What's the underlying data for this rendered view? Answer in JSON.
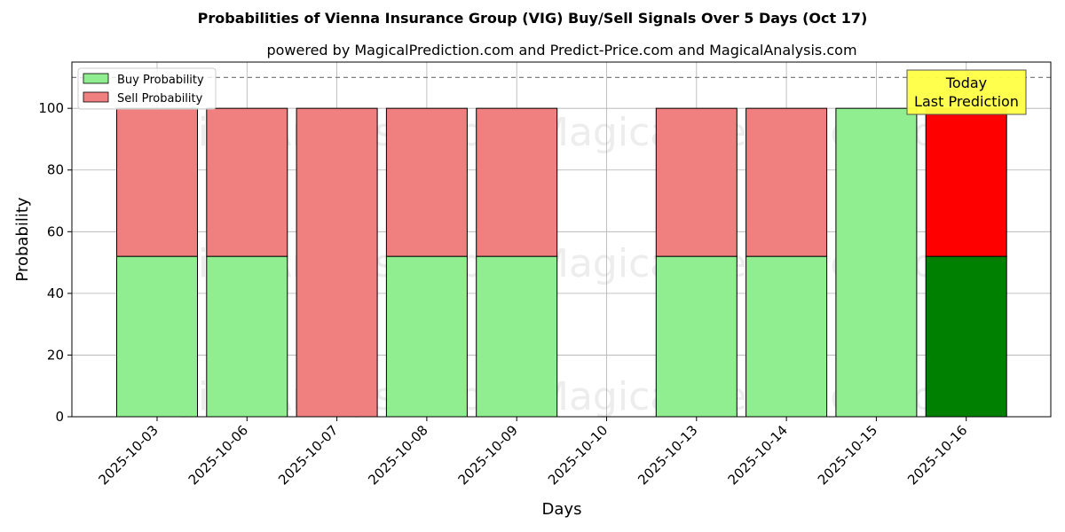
{
  "chart_data": {
    "type": "bar",
    "title": "Probabilities of Vienna Insurance Group (VIG) Buy/Sell Signals Over 5 Days (Oct 17)",
    "subtitle": "powered by MagicalPrediction.com and Predict-Price.com and MagicalAnalysis.com",
    "xlabel": "Days",
    "ylabel": "Probability",
    "ylim": [
      0,
      115
    ],
    "yticks": [
      0,
      20,
      40,
      60,
      80,
      100
    ],
    "grid": true,
    "stacked": true,
    "legend_position": "top-left",
    "categories": [
      "2025-10-03",
      "2025-10-06",
      "2025-10-07",
      "2025-10-08",
      "2025-10-09",
      "2025-10-10",
      "2025-10-13",
      "2025-10-14",
      "2025-10-15",
      "2025-10-16"
    ],
    "series": [
      {
        "name": "Buy Probability",
        "color": "#90ee90",
        "highlight_color": "#008000",
        "values": [
          52,
          52,
          0,
          52,
          52,
          null,
          52,
          52,
          100,
          52
        ]
      },
      {
        "name": "Sell Probability",
        "color": "#f08080",
        "highlight_color": "#ff0000",
        "values": [
          48,
          48,
          100,
          48,
          48,
          null,
          48,
          48,
          0,
          48
        ]
      }
    ],
    "highlight_index": 9,
    "reference_line": {
      "y": 110,
      "style": "dashed",
      "color": "#808080"
    },
    "annotation": {
      "lines": [
        "Today",
        "Last Prediction"
      ],
      "background": "#ffff44"
    },
    "watermarks": [
      "MagicalAnalysis.com",
      "MagicalPrediction.com"
    ]
  }
}
